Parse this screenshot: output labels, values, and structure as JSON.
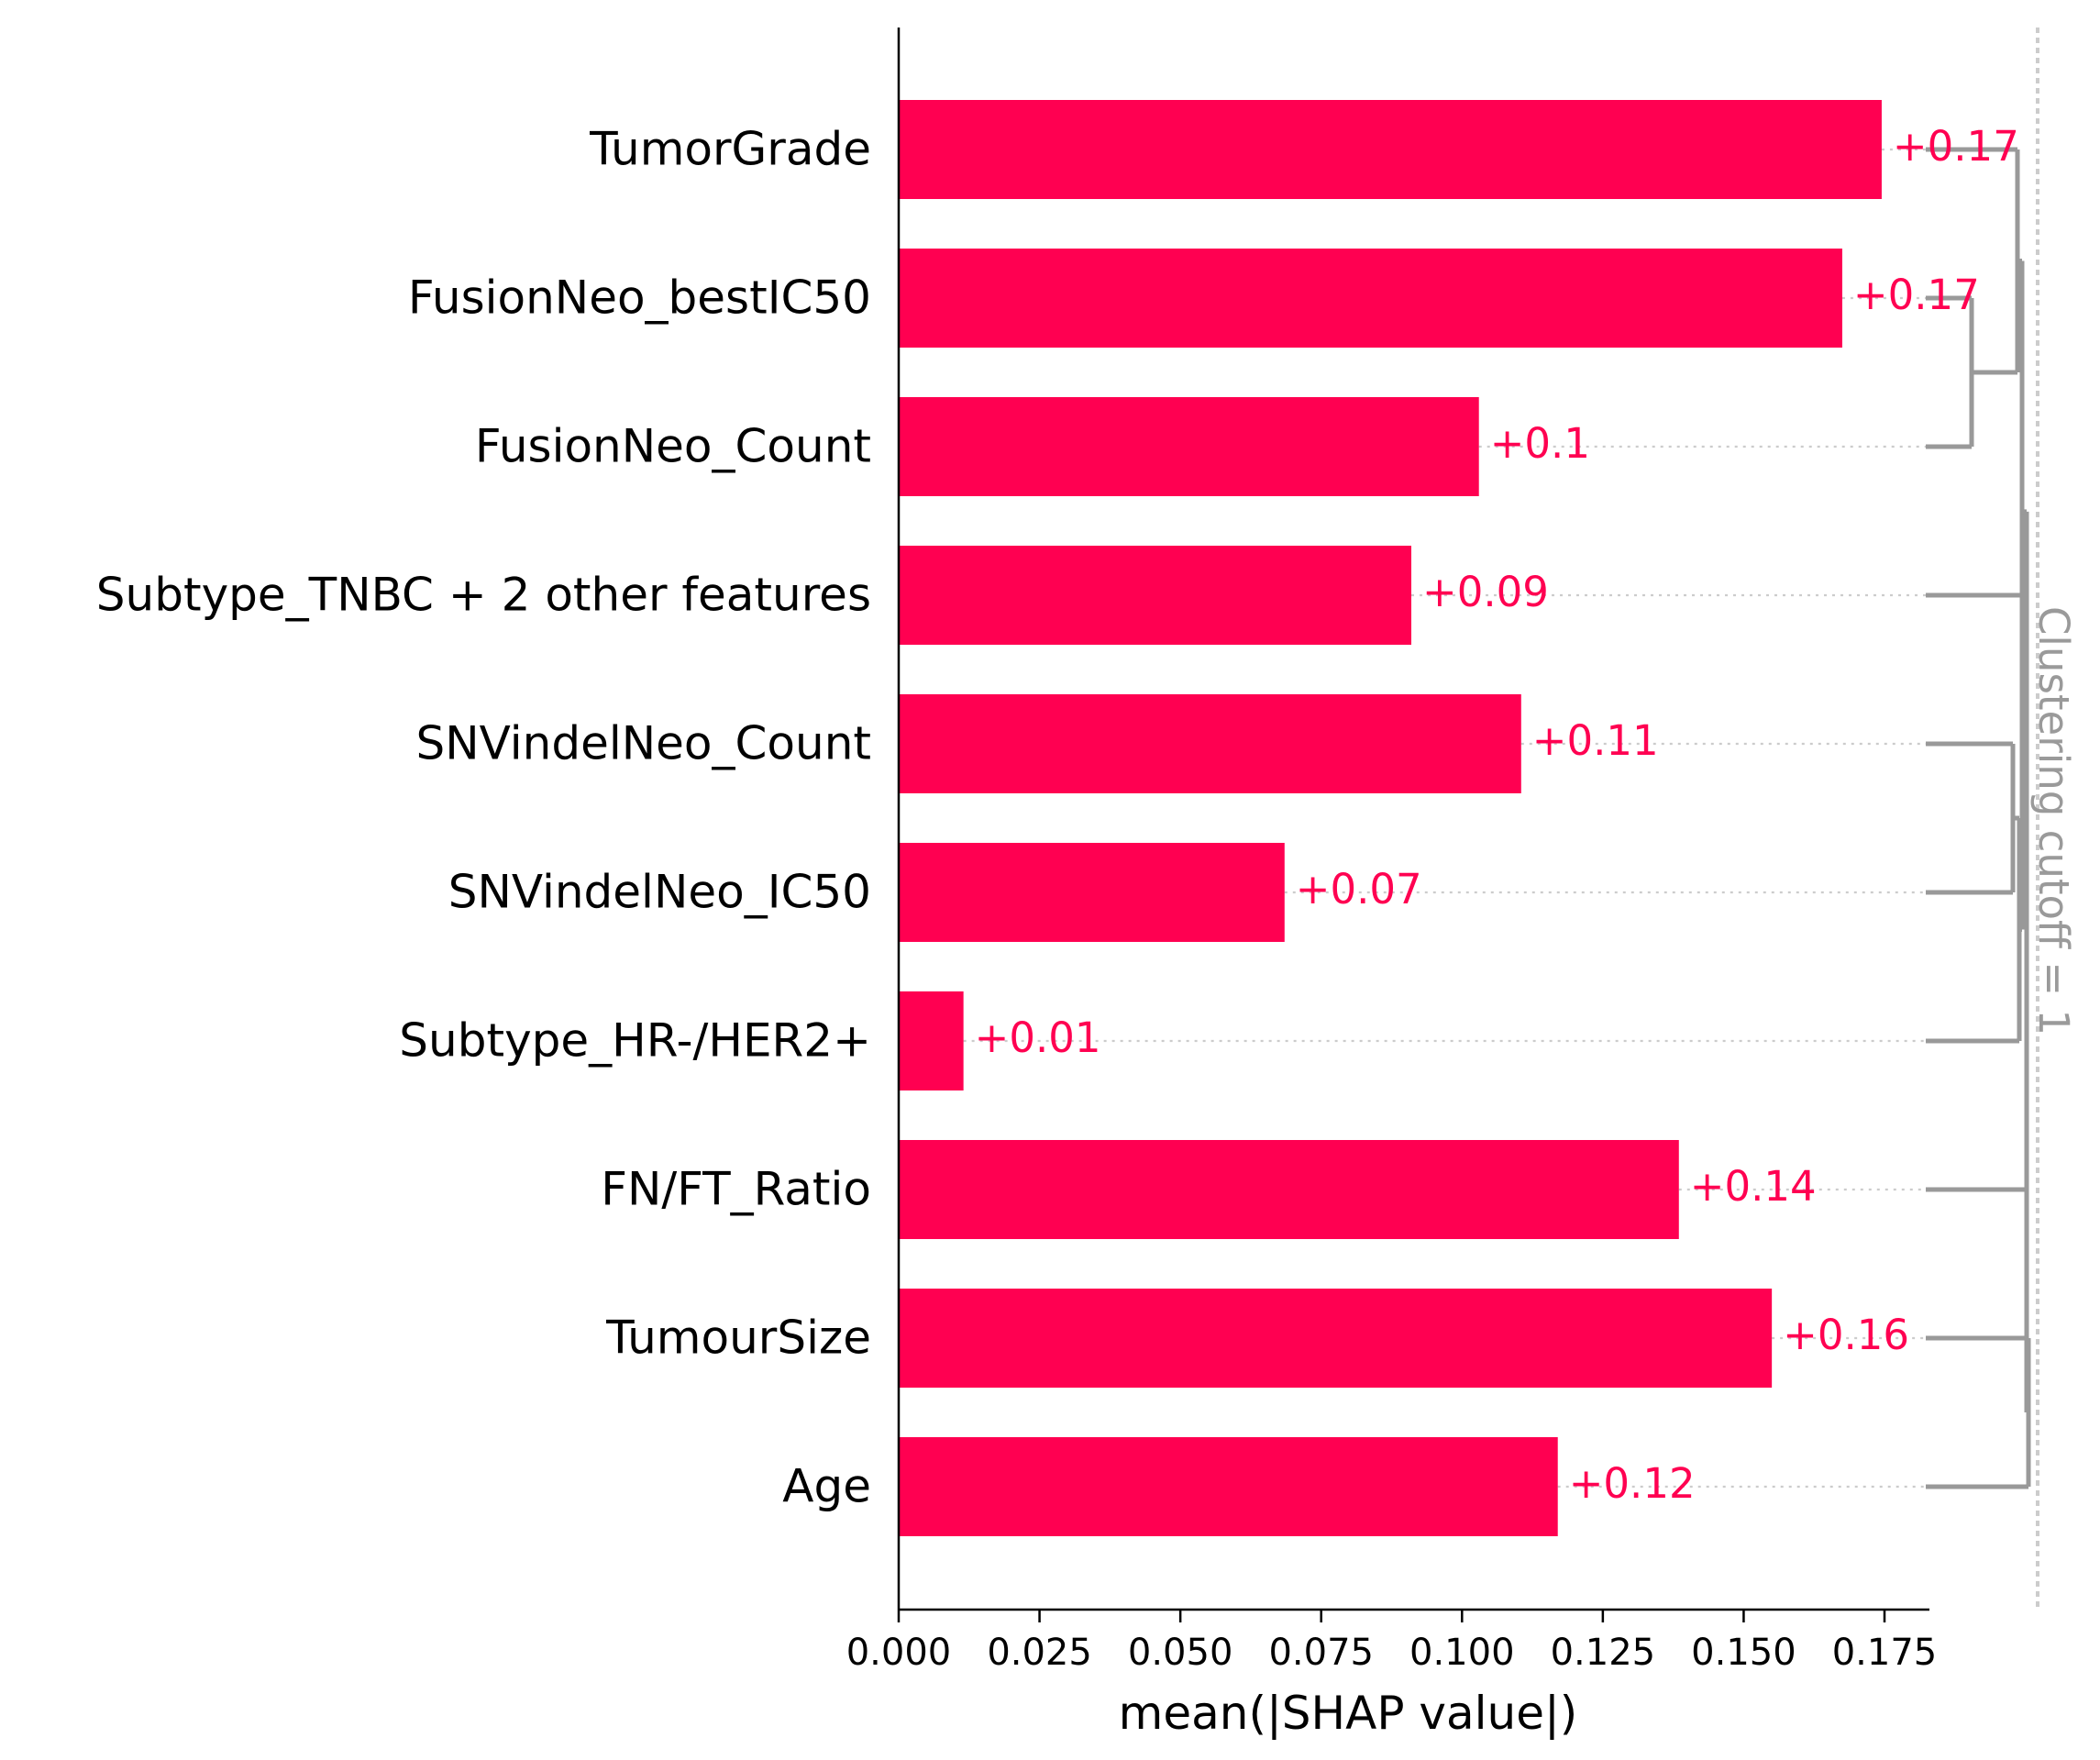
{
  "chart_data": {
    "type": "bar",
    "orientation": "horizontal",
    "categories": [
      "TumorGrade",
      "FusionNeo_bestIC50",
      "FusionNeo_Count",
      "Subtype_TNBC + 2 other features",
      "SNVindelNeo_Count",
      "SNVindelNeo_IC50",
      "Subtype_HR-/HER2+",
      "FN/FT_Ratio",
      "TumourSize",
      "Age"
    ],
    "values": [
      0.1745,
      0.1675,
      0.103,
      0.091,
      0.1105,
      0.0685,
      0.0115,
      0.1385,
      0.155,
      0.117
    ],
    "value_labels": [
      "+0.17",
      "+0.17",
      "+0.1",
      "+0.09",
      "+0.11",
      "+0.07",
      "+0.01",
      "+0.14",
      "+0.16",
      "+0.12"
    ],
    "xlabel": "mean(|SHAP value|)",
    "xlim": [
      0,
      0.1925
    ],
    "xticks": [
      "0.000",
      "0.025",
      "0.050",
      "0.075",
      "0.100",
      "0.125",
      "0.150",
      "0.175"
    ],
    "clustering_label": "Clustering cutoff = 1",
    "bar_color": "#ff0051",
    "dendrogram_color": "#999999"
  }
}
